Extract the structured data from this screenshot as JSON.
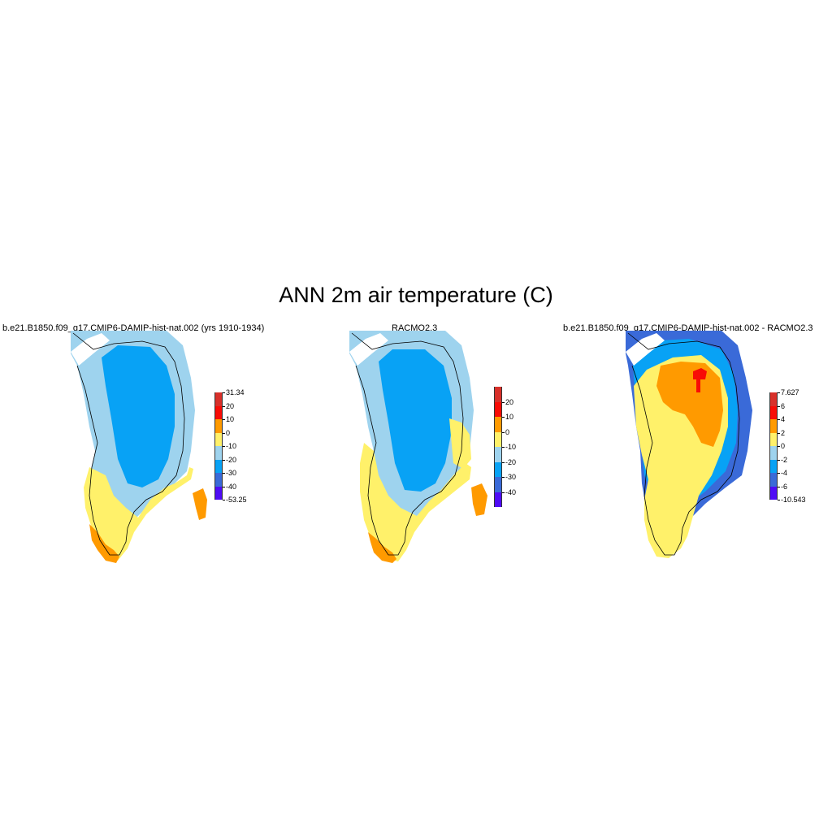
{
  "figure": {
    "title": "ANN 2m air temperature (C)"
  },
  "panels": [
    {
      "id": "model",
      "title": "b.e21.B1850.f09_g17.CMIP6-DAMIP-hist-nat.002 (yrs 1910-1934)",
      "colorbar": {
        "labels": [
          "31.34",
          "20",
          "10",
          "0",
          "-10",
          "-20",
          "-30",
          "-40",
          "-53.25"
        ],
        "colors": [
          "#d8302a",
          "#f80c06",
          "#ff9a00",
          "#fff16a",
          "#9ed3ee",
          "#08a2f5",
          "#3a6ad8",
          "#4f0cf5"
        ]
      }
    },
    {
      "id": "obs",
      "title": "RACMO2.3",
      "colorbar": {
        "labels": [
          "20",
          "10",
          "0",
          "-10",
          "-20",
          "-30",
          "-40"
        ],
        "colors": [
          "#d8302a",
          "#f80c06",
          "#ff9a00",
          "#fff16a",
          "#9ed3ee",
          "#08a2f5",
          "#3a6ad8",
          "#4f0cf5"
        ]
      }
    },
    {
      "id": "diff",
      "title": "b.e21.B1850.f09_g17.CMIP6-DAMIP-hist-nat.002 - RACMO2.3",
      "colorbar": {
        "labels": [
          "7.627",
          "6",
          "4",
          "2",
          "0",
          "-2",
          "-4",
          "-6",
          "-10.543"
        ],
        "colors": [
          "#d8302a",
          "#f80c06",
          "#ff9a00",
          "#fff16a",
          "#9ed3ee",
          "#08a2f5",
          "#3a6ad8",
          "#4f0cf5"
        ]
      }
    }
  ]
}
